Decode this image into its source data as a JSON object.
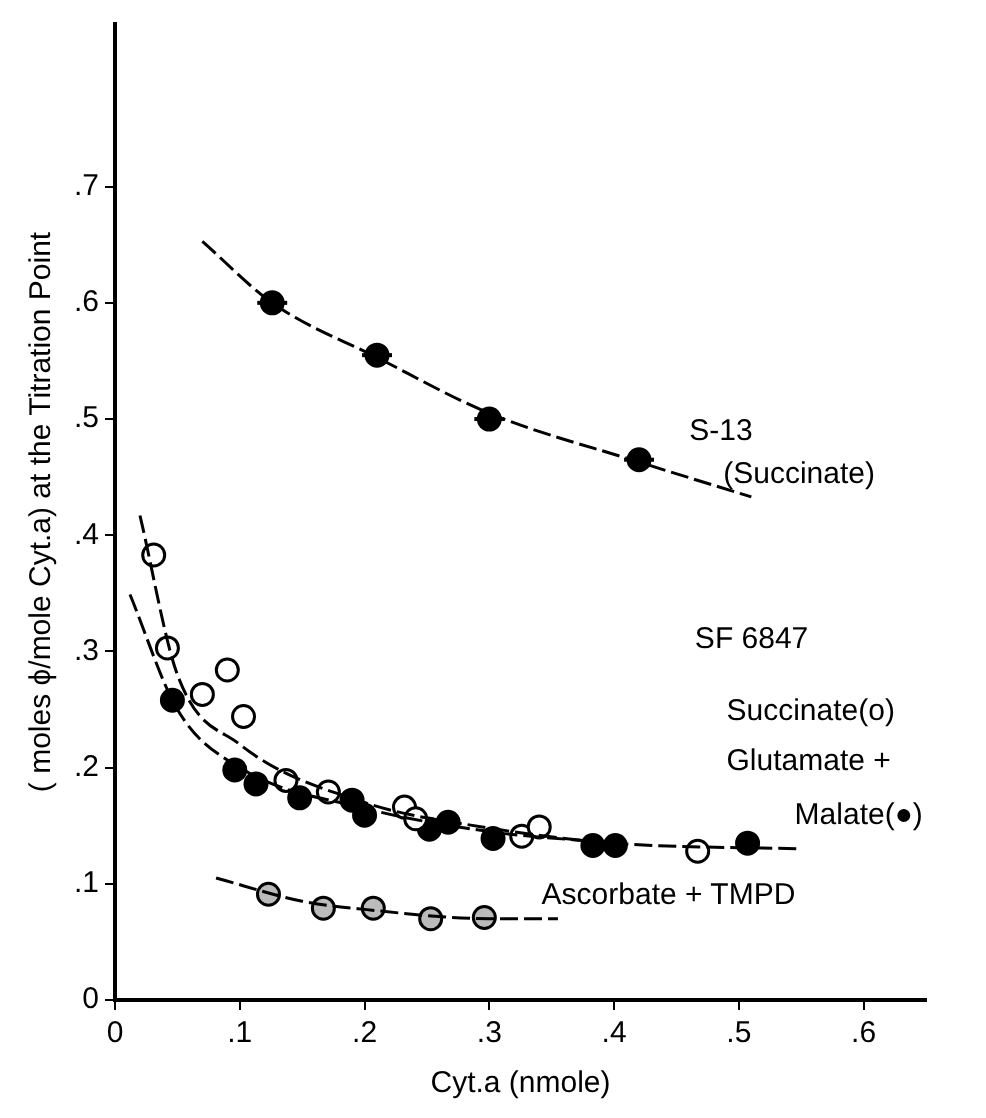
{
  "chart_data": {
    "type": "scatter",
    "xlabel": "Cyt.a (nmole)",
    "ylabel": "( moles ϕ/mole Cyt.a) at the Titration Point",
    "xlim": [
      0,
      0.65
    ],
    "ylim": [
      0,
      0.84
    ],
    "xticks": [
      0,
      {
        "value": 0.1,
        "label": ".1"
      },
      {
        "value": 0.2,
        "label": ".2"
      },
      {
        "value": 0.3,
        "label": ".3"
      },
      {
        "value": 0.4,
        "label": ".4"
      },
      {
        "value": 0.5,
        "label": ".5"
      },
      {
        "value": 0.6,
        "label": ".6"
      }
    ],
    "yticks": [
      0,
      {
        "value": 0.1,
        "label": ".1"
      },
      {
        "value": 0.2,
        "label": ".2"
      },
      {
        "value": 0.3,
        "label": ".3"
      },
      {
        "value": 0.4,
        "label": ".4"
      },
      {
        "value": 0.5,
        "label": ".5"
      },
      {
        "value": 0.6,
        "label": ".6"
      },
      {
        "value": 0.7,
        "label": ".7"
      }
    ],
    "grid": false,
    "legend": false,
    "marker": "circle",
    "series": [
      {
        "type": "line",
        "line_style": "dashed",
        "marker": "none",
        "color": "#000000",
        "x": [
          0.07,
          0.126,
          0.21,
          0.3,
          0.42,
          0.51
        ],
        "values": [
          0.653,
          0.6,
          0.553,
          0.505,
          0.463,
          0.433
        ]
      },
      {
        "type": "line",
        "line_style": "dashed",
        "marker": "none",
        "color": "#000000",
        "x": [
          0.02,
          0.05,
          0.1,
          0.2,
          0.3,
          0.4,
          0.55
        ],
        "values": [
          0.417,
          0.28,
          0.22,
          0.17,
          0.148,
          0.135,
          0.13
        ]
      },
      {
        "type": "line",
        "line_style": "dashed",
        "marker": "none",
        "color": "#000000",
        "x": [
          0.012,
          0.05,
          0.1,
          0.2,
          0.3,
          0.4
        ],
        "values": [
          0.349,
          0.25,
          0.2,
          0.165,
          0.145,
          0.135
        ]
      },
      {
        "type": "line",
        "line_style": "dashed",
        "marker": "none",
        "color": "#000000",
        "x": [
          0.081,
          0.15,
          0.2,
          0.3,
          0.355
        ],
        "values": [
          0.105,
          0.085,
          0.078,
          0.07,
          0.07
        ]
      },
      {
        "type": "scatter",
        "color": "#000000",
        "x": [
          0.126,
          0.21,
          0.3,
          0.42
        ],
        "values": [
          0.6,
          0.555,
          0.5,
          0.465
        ],
        "xerrors": [
          0.012,
          0.012,
          0.012,
          0.012
        ]
      },
      {
        "type": "scatter",
        "color": "#ffffff",
        "x": [
          0.031,
          0.042,
          0.07,
          0.09,
          0.103,
          0.137,
          0.171,
          0.232,
          0.241,
          0.326,
          0.34,
          0.467
        ],
        "values": [
          0.383,
          0.303,
          0.263,
          0.284,
          0.244,
          0.189,
          0.179,
          0.166,
          0.156,
          0.141,
          0.149,
          0.128
        ]
      },
      {
        "type": "scatter",
        "color": "#000000",
        "x": [
          0.046,
          0.096,
          0.113,
          0.148,
          0.19,
          0.2,
          0.252,
          0.267,
          0.303,
          0.383,
          0.401,
          0.507
        ],
        "values": [
          0.258,
          0.198,
          0.186,
          0.174,
          0.172,
          0.159,
          0.147,
          0.153,
          0.139,
          0.133,
          0.133,
          0.135
        ]
      },
      {
        "type": "scatter",
        "color": "#bbbbbb",
        "x": [
          0.123,
          0.167,
          0.207,
          0.253,
          0.296
        ],
        "values": [
          0.091,
          0.079,
          0.079,
          0.07,
          0.071
        ]
      }
    ],
    "annotations": [
      "S-13",
      "(Succinate)",
      "SF 6847",
      "Succinate(o)",
      "Glutamate +",
      "Malate(●)",
      "Ascorbate + TMPD"
    ]
  }
}
